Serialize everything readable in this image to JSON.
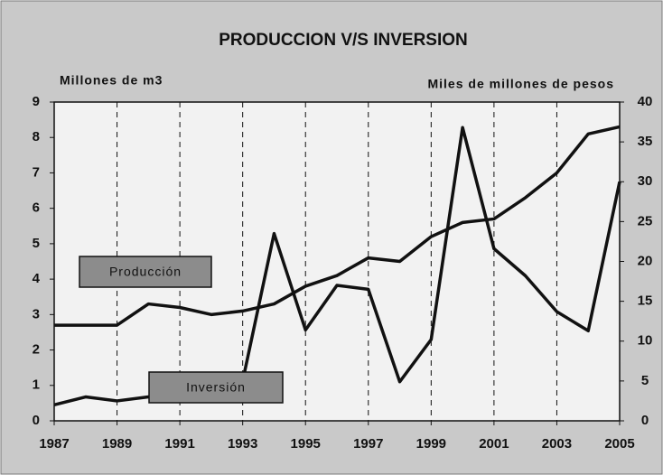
{
  "chart_data": {
    "type": "line",
    "title": "PRODUCCION V/S INVERSION",
    "y_label": "Millones de m3",
    "y2_label": "Miles de millones de pesos",
    "x": [
      1987,
      1988,
      1989,
      1990,
      1991,
      1992,
      1993,
      1994,
      1995,
      1996,
      1997,
      1998,
      1999,
      2000,
      2001,
      2002,
      2003,
      2004,
      2005
    ],
    "xlim": [
      1987,
      2005
    ],
    "xticks": [
      1987,
      1989,
      1991,
      1993,
      1995,
      1997,
      1999,
      2001,
      2003,
      2005
    ],
    "ylim": [
      0,
      9
    ],
    "yticks": [
      0,
      1,
      2,
      3,
      4,
      5,
      6,
      7,
      8,
      9
    ],
    "y2lim": [
      0,
      40
    ],
    "y2ticks": [
      0,
      5,
      10,
      15,
      20,
      25,
      30,
      35,
      40
    ],
    "grid": "x",
    "series": [
      {
        "name": "Producción",
        "color": "#111111",
        "axis": "y",
        "values": [
          2.7,
          2.7,
          2.7,
          3.3,
          3.2,
          3.0,
          3.1,
          3.3,
          3.8,
          4.1,
          4.6,
          4.5,
          5.2,
          5.6,
          5.7,
          6.3,
          7.0,
          8.1,
          8.3
        ]
      },
      {
        "name": "Inversión",
        "color": "#111111",
        "axis": "y2",
        "values": [
          2.0,
          3.0,
          2.5,
          3.0,
          4.0,
          4.5,
          5.0,
          23.5,
          11.4,
          17.0,
          16.5,
          4.9,
          10.2,
          36.8,
          21.6,
          18.2,
          13.7,
          11.3,
          30.0
        ]
      }
    ]
  }
}
